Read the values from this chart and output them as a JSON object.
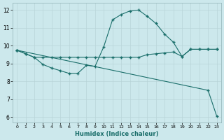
{
  "xlabel": "Humidex (Indice chaleur)",
  "bg_color": "#cce8ec",
  "grid_color": "#b8d4d8",
  "line_color": "#1a6e6a",
  "xlim": [
    -0.5,
    23.5
  ],
  "ylim": [
    5.7,
    12.4
  ],
  "yticks": [
    6,
    7,
    8,
    9,
    10,
    11,
    12
  ],
  "xticks": [
    0,
    1,
    2,
    3,
    4,
    5,
    6,
    7,
    8,
    9,
    10,
    11,
    12,
    13,
    14,
    15,
    16,
    17,
    18,
    19,
    20,
    21,
    22,
    23
  ],
  "line1_x": [
    0,
    1,
    2,
    3,
    4,
    5,
    6,
    7,
    8,
    9,
    10,
    11,
    12,
    13,
    14,
    15,
    16,
    17,
    18,
    19,
    20,
    21,
    22,
    23
  ],
  "line1_y": [
    9.75,
    9.55,
    9.35,
    8.95,
    8.75,
    8.6,
    8.45,
    8.45,
    8.9,
    8.85,
    9.95,
    11.45,
    11.75,
    11.95,
    12.0,
    11.65,
    11.25,
    10.65,
    10.2,
    9.4,
    9.8,
    9.8,
    9.8,
    9.8
  ],
  "line2_x": [
    0,
    1,
    2,
    3,
    4,
    5,
    6,
    7,
    8,
    9,
    10,
    11,
    12,
    13,
    14,
    15,
    16,
    17,
    18,
    19,
    20,
    21,
    22,
    23
  ],
  "line2_y": [
    9.75,
    9.55,
    9.35,
    9.35,
    9.35,
    9.35,
    9.35,
    9.35,
    9.35,
    9.35,
    9.35,
    9.35,
    9.35,
    9.35,
    9.35,
    9.5,
    9.55,
    9.6,
    9.65,
    9.4,
    9.8,
    9.8,
    9.8,
    9.8
  ],
  "line3_x": [
    0,
    22,
    23
  ],
  "line3_y": [
    9.75,
    7.5,
    6.05
  ]
}
